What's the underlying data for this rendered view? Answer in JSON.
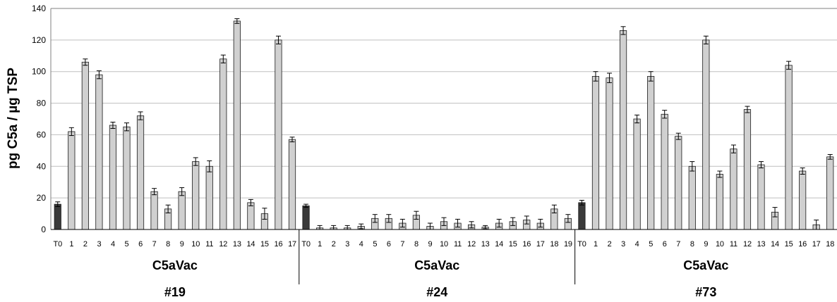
{
  "chart_data": {
    "type": "bar",
    "ylabel": "pg C5a / µg TSP",
    "ylim": [
      0,
      140
    ],
    "yticks": [
      0,
      20,
      40,
      60,
      80,
      100,
      120,
      140
    ],
    "grid": true,
    "colors": {
      "control": "#3a3a3a",
      "sample": "#d0d0d0",
      "grid": "#bfbfbf",
      "axis": "#808080"
    },
    "groups": [
      {
        "name": "C5aVac",
        "id": "#19",
        "categories": [
          "T0",
          "1",
          "2",
          "3",
          "4",
          "5",
          "6",
          "7",
          "8",
          "9",
          "10",
          "11",
          "12",
          "13",
          "14",
          "15",
          "16",
          "17"
        ],
        "values": [
          16,
          62,
          106,
          98,
          66,
          65,
          72,
          24,
          13,
          24,
          43,
          40,
          108,
          132,
          17,
          10,
          120,
          57
        ],
        "errors": [
          1.5,
          2.5,
          2,
          2.5,
          2,
          2.5,
          2.5,
          2,
          2.5,
          2.5,
          2.5,
          3.5,
          2.5,
          1.5,
          2,
          3.5,
          2.5,
          1.5
        ]
      },
      {
        "name": "C5aVac",
        "id": "#24",
        "categories": [
          "T0",
          "1",
          "2",
          "3",
          "4",
          "5",
          "6",
          "7",
          "8",
          "9",
          "10",
          "11",
          "12",
          "13",
          "14",
          "15",
          "16",
          "17",
          "18",
          "19"
        ],
        "values": [
          15,
          1,
          1,
          1,
          2,
          7,
          7,
          4,
          9,
          2,
          5,
          4,
          3,
          1.5,
          4,
          5,
          6,
          4,
          13,
          7
        ],
        "errors": [
          1,
          1.5,
          1.5,
          1.5,
          1.5,
          2.5,
          2.5,
          2.5,
          2.5,
          2,
          2.5,
          2.5,
          2,
          1,
          2.5,
          2.5,
          2.5,
          2.5,
          2.5,
          2.5
        ]
      },
      {
        "name": "C5aVac",
        "id": "#73",
        "categories": [
          "T0",
          "1",
          "2",
          "3",
          "4",
          "5",
          "6",
          "7",
          "8",
          "9",
          "10",
          "11",
          "12",
          "13",
          "14",
          "15",
          "16",
          "17",
          "18"
        ],
        "values": [
          17,
          97,
          96,
          126,
          70,
          97,
          73,
          59,
          40,
          120,
          35,
          51,
          76,
          41,
          11,
          104,
          37,
          3,
          46
        ],
        "errors": [
          1.5,
          3,
          3,
          2.5,
          2.5,
          3,
          2.5,
          2,
          3,
          2.5,
          2,
          2.5,
          2,
          2,
          3,
          2.5,
          2,
          3,
          1.5
        ]
      }
    ]
  }
}
